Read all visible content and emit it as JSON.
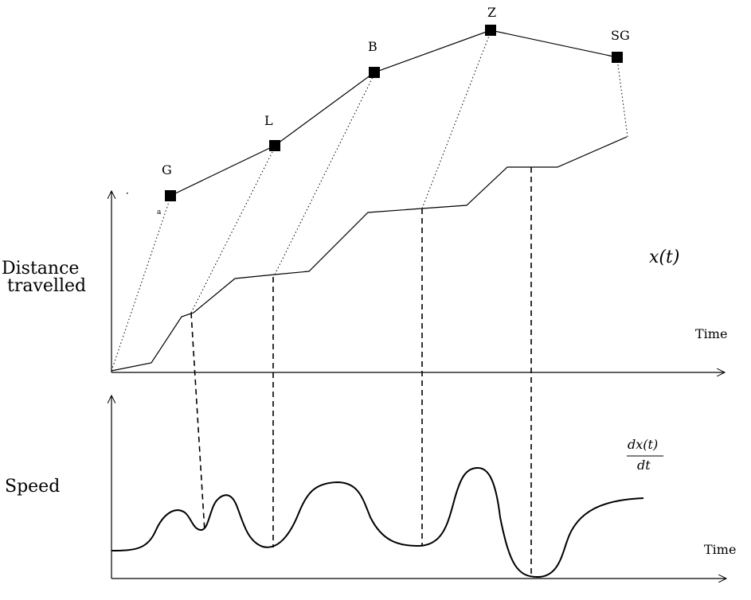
{
  "labels": {
    "distance_line1": "Distance",
    "distance_line2": "travelled",
    "speed": "Speed",
    "time_top": "Time",
    "time_bottom": "Time",
    "x_of_t": "x(t)",
    "dx_num": "dx(t)",
    "dx_den": "dt",
    "tiny_a": "a"
  },
  "markers": [
    {
      "label": "G"
    },
    {
      "label": "L"
    },
    {
      "label": "B"
    },
    {
      "label": "Z"
    },
    {
      "label": "SG"
    }
  ]
}
